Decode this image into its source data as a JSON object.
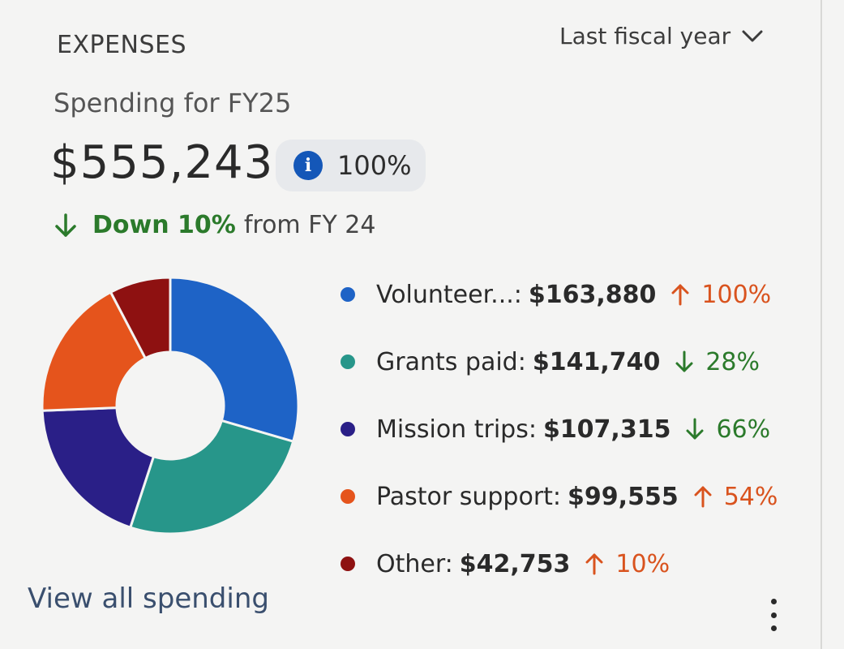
{
  "header": {
    "title": "EXPENSES",
    "period": "Last fiscal year"
  },
  "summary": {
    "subtitle": "Spending for FY25",
    "total": "$555,243",
    "percent": "100%",
    "trend_strong": "Down 10%",
    "trend_rest": "from FY 24",
    "trend_direction": "down"
  },
  "chart_data": {
    "type": "pie",
    "variant": "donut",
    "categories": [
      "Volunteer...",
      "Grants paid",
      "Mission trips",
      "Pastor support",
      "Other"
    ],
    "values": [
      163880,
      141740,
      107315,
      99555,
      42753
    ],
    "colors": [
      "#1e63c6",
      "#27968a",
      "#2a1f87",
      "#e5541c",
      "#8e1111"
    ],
    "legend": [
      {
        "label": "Volunteer...:",
        "value": "$163,880",
        "direction": "up",
        "change": "100%"
      },
      {
        "label": "Grants paid:",
        "value": "$141,740",
        "direction": "down",
        "change": "28%"
      },
      {
        "label": "Mission trips:",
        "value": "$107,315",
        "direction": "down",
        "change": "66%"
      },
      {
        "label": "Pastor support:",
        "value": "$99,555",
        "direction": "up",
        "change": "54%"
      },
      {
        "label": "Other:",
        "value": "$42,753",
        "direction": "up",
        "change": "10%"
      }
    ]
  },
  "footer": {
    "link": "View all spending"
  },
  "colors": {
    "up": "#d9531e",
    "down": "#2b7a2b",
    "info": "#1457b8"
  }
}
